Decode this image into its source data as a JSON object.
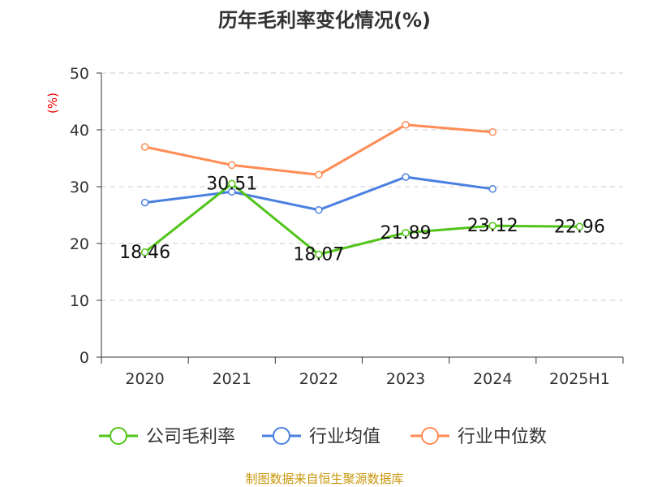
{
  "chart_data": {
    "type": "line",
    "title": "历年毛利率变化情况(%)",
    "ylabel": "(%)",
    "categories": [
      "2020",
      "2021",
      "2022",
      "2023",
      "2024",
      "2025H1"
    ],
    "ylim": [
      0,
      50
    ],
    "yticks": [
      0,
      10,
      20,
      30,
      40,
      50
    ],
    "grid": true,
    "legend_position": "bottom",
    "series": [
      {
        "name": "公司毛利率",
        "color": "#52c41a",
        "values": [
          18.46,
          30.51,
          18.07,
          21.89,
          23.12,
          22.96
        ],
        "labels": [
          "18.46",
          "30.51",
          "18.07",
          "21.89",
          "23.12",
          "22.96"
        ]
      },
      {
        "name": "行业均值",
        "color": "#4a80e0",
        "values": [
          27.2,
          29.1,
          25.9,
          31.7,
          29.6,
          null
        ]
      },
      {
        "name": "行业中位数",
        "color": "#ff8c55",
        "values": [
          37.0,
          33.8,
          32.1,
          40.9,
          39.6,
          null
        ]
      }
    ]
  },
  "footer": {
    "source": "制图数据来自恒生聚源数据库"
  }
}
